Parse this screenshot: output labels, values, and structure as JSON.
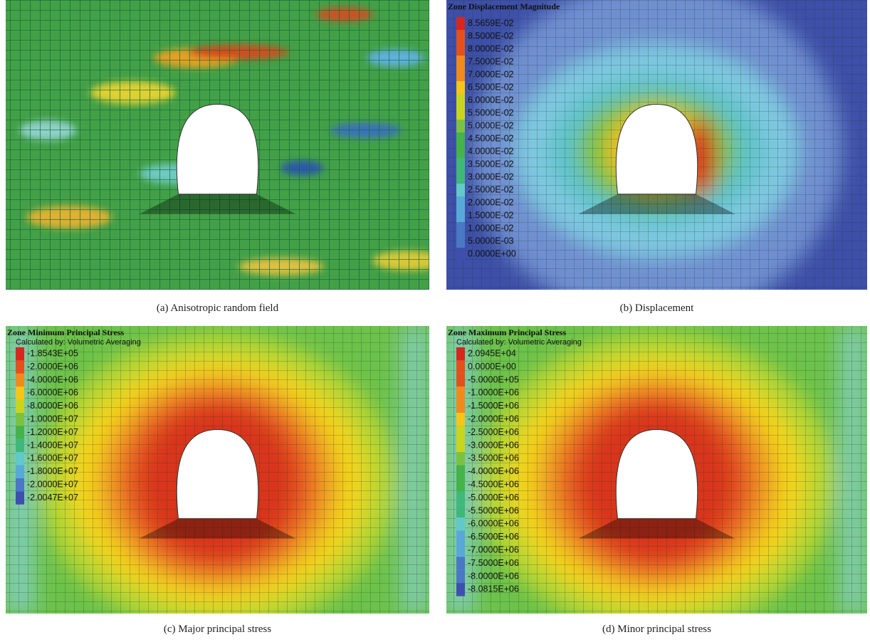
{
  "panels": [
    {
      "caption": "(a) Anisotropic random field"
    },
    {
      "caption": "(b) Displacement",
      "legend": {
        "title": "Zone Displacement Magnitude",
        "labels": [
          "8.5659E-02",
          "8.5000E-02",
          "8.0000E-02",
          "7.5000E-02",
          "7.0000E-02",
          "6.5000E-02",
          "6.0000E-02",
          "5.5000E-02",
          "5.0000E-02",
          "4.5000E-02",
          "4.0000E-02",
          "3.5000E-02",
          "3.0000E-02",
          "2.5000E-02",
          "2.0000E-02",
          "1.5000E-02",
          "1.0000E-02",
          "5.0000E-03",
          "0.0000E+00"
        ]
      }
    },
    {
      "caption": "(c) Major principal stress",
      "legend": {
        "title": "Zone Minimum Principal Stress",
        "subtitle": "Calculated by: Volumetric Averaging",
        "labels": [
          "-1.8543E+05",
          "-2.0000E+06",
          "-4.0000E+06",
          "-6.0000E+06",
          "-8.0000E+06",
          "-1.0000E+07",
          "-1.2000E+07",
          "-1.4000E+07",
          "-1.6000E+07",
          "-1.8000E+07",
          "-2.0000E+07",
          "-2.0047E+07"
        ]
      }
    },
    {
      "caption": "(d) Minor principal stress",
      "legend": {
        "title": "Zone Maximum Principal Stress",
        "subtitle": "Calculated by: Volumetric Averaging",
        "labels": [
          "2.0945E+04",
          "0.0000E+00",
          "-5.0000E+05",
          "-1.0000E+06",
          "-1.5000E+06",
          "-2.0000E+06",
          "-2.5000E+06",
          "-3.0000E+06",
          "-3.5000E+06",
          "-4.0000E+06",
          "-4.5000E+06",
          "-5.0000E+06",
          "-5.5000E+06",
          "-6.0000E+06",
          "-6.5000E+06",
          "-7.0000E+06",
          "-7.5000E+06",
          "-8.0000E+06",
          "-8.0815E+06"
        ]
      }
    }
  ]
}
